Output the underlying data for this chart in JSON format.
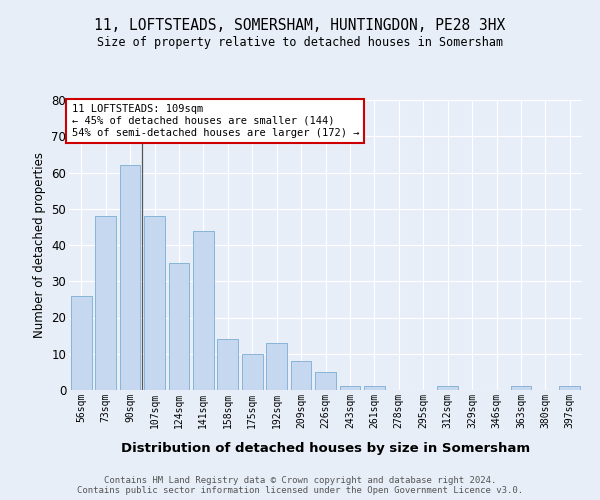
{
  "title1": "11, LOFTSTEADS, SOMERSHAM, HUNTINGDON, PE28 3HX",
  "title2": "Size of property relative to detached houses in Somersham",
  "xlabel": "Distribution of detached houses by size in Somersham",
  "ylabel": "Number of detached properties",
  "categories": [
    "56sqm",
    "73sqm",
    "90sqm",
    "107sqm",
    "124sqm",
    "141sqm",
    "158sqm",
    "175sqm",
    "192sqm",
    "209sqm",
    "226sqm",
    "243sqm",
    "261sqm",
    "278sqm",
    "295sqm",
    "312sqm",
    "329sqm",
    "346sqm",
    "363sqm",
    "380sqm",
    "397sqm"
  ],
  "values": [
    26,
    48,
    62,
    48,
    35,
    44,
    14,
    10,
    13,
    8,
    5,
    1,
    1,
    0,
    0,
    1,
    0,
    0,
    1,
    0,
    1
  ],
  "bar_color": "#c5d8f0",
  "bar_edge_color": "#7aadd4",
  "annotation_box_text": "11 LOFTSTEADS: 109sqm\n← 45% of detached houses are smaller (144)\n54% of semi-detached houses are larger (172) →",
  "annotation_box_color": "#ffffff",
  "annotation_box_edge_color": "#cc0000",
  "background_color": "#e8eef8",
  "plot_bg_color": "#e8eef8",
  "footer_text": "Contains HM Land Registry data © Crown copyright and database right 2024.\nContains public sector information licensed under the Open Government Licence v3.0.",
  "ylim": [
    0,
    80
  ],
  "yticks": [
    0,
    10,
    20,
    30,
    40,
    50,
    60,
    70,
    80
  ],
  "vline_x": 2.5
}
